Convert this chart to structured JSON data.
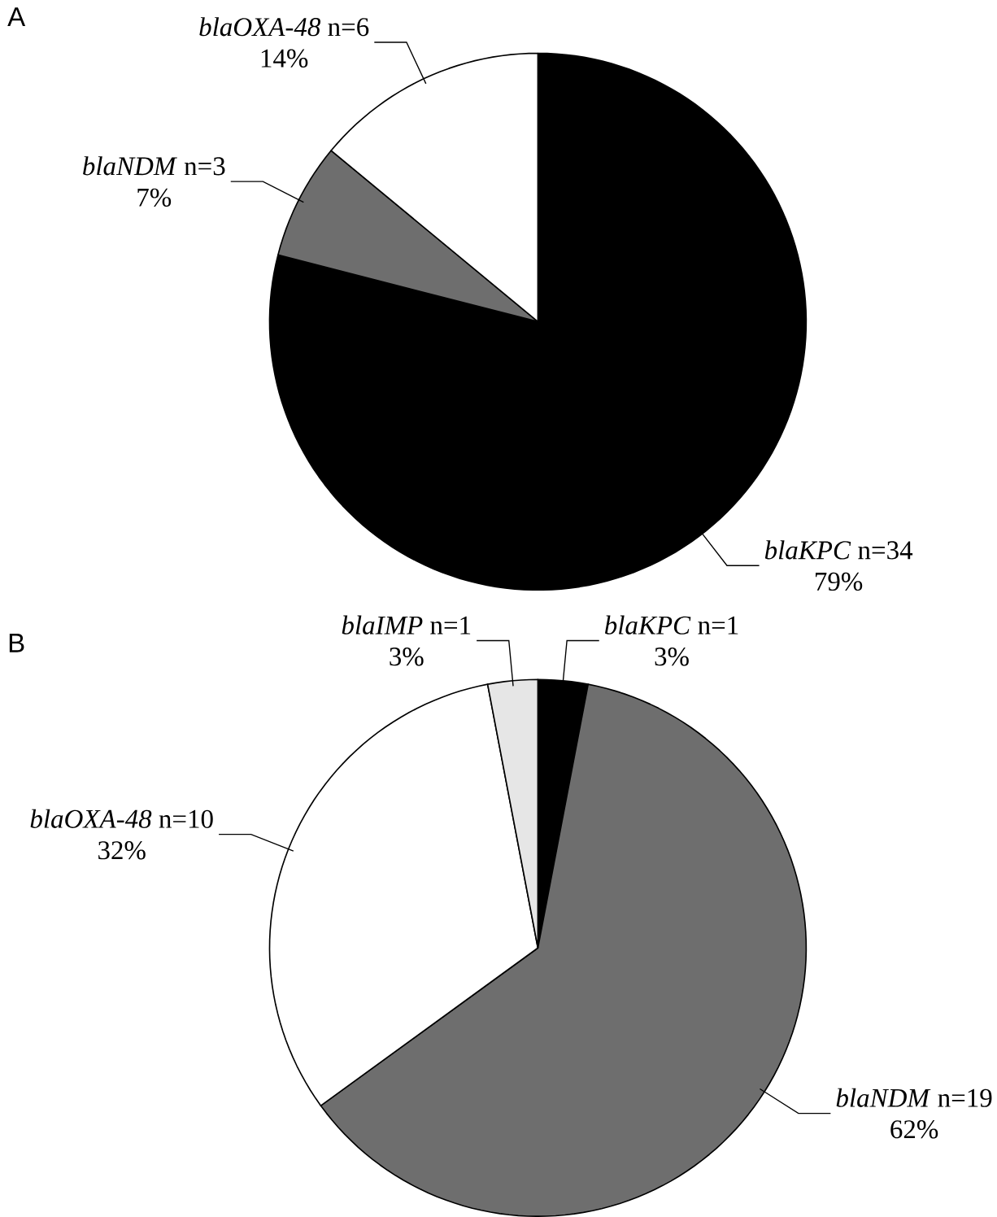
{
  "chart_data": [
    {
      "type": "pie",
      "title": "A",
      "categories": [
        "*blaKPC* n=34",
        "*blaNDM* n=3",
        "*blaOXA-48* n=6"
      ],
      "values": [
        79,
        7,
        14
      ],
      "value_labels": [
        "79%",
        "7%",
        "14%"
      ],
      "colors": [
        "#000000",
        "#6e6e6e",
        "#ffffff"
      ]
    },
    {
      "type": "pie",
      "title": "B",
      "categories": [
        "*blaKPC* n=1",
        "*blaNDM* n=19",
        "*blaOXA-48* n=10",
        "*blaIMP* n=1"
      ],
      "values": [
        3,
        62,
        32,
        3
      ],
      "value_labels": [
        "3%",
        "62%",
        "32%",
        "3%"
      ],
      "colors": [
        "#000000",
        "#6e6e6e",
        "#ffffff",
        "#e6e6e6"
      ]
    }
  ]
}
